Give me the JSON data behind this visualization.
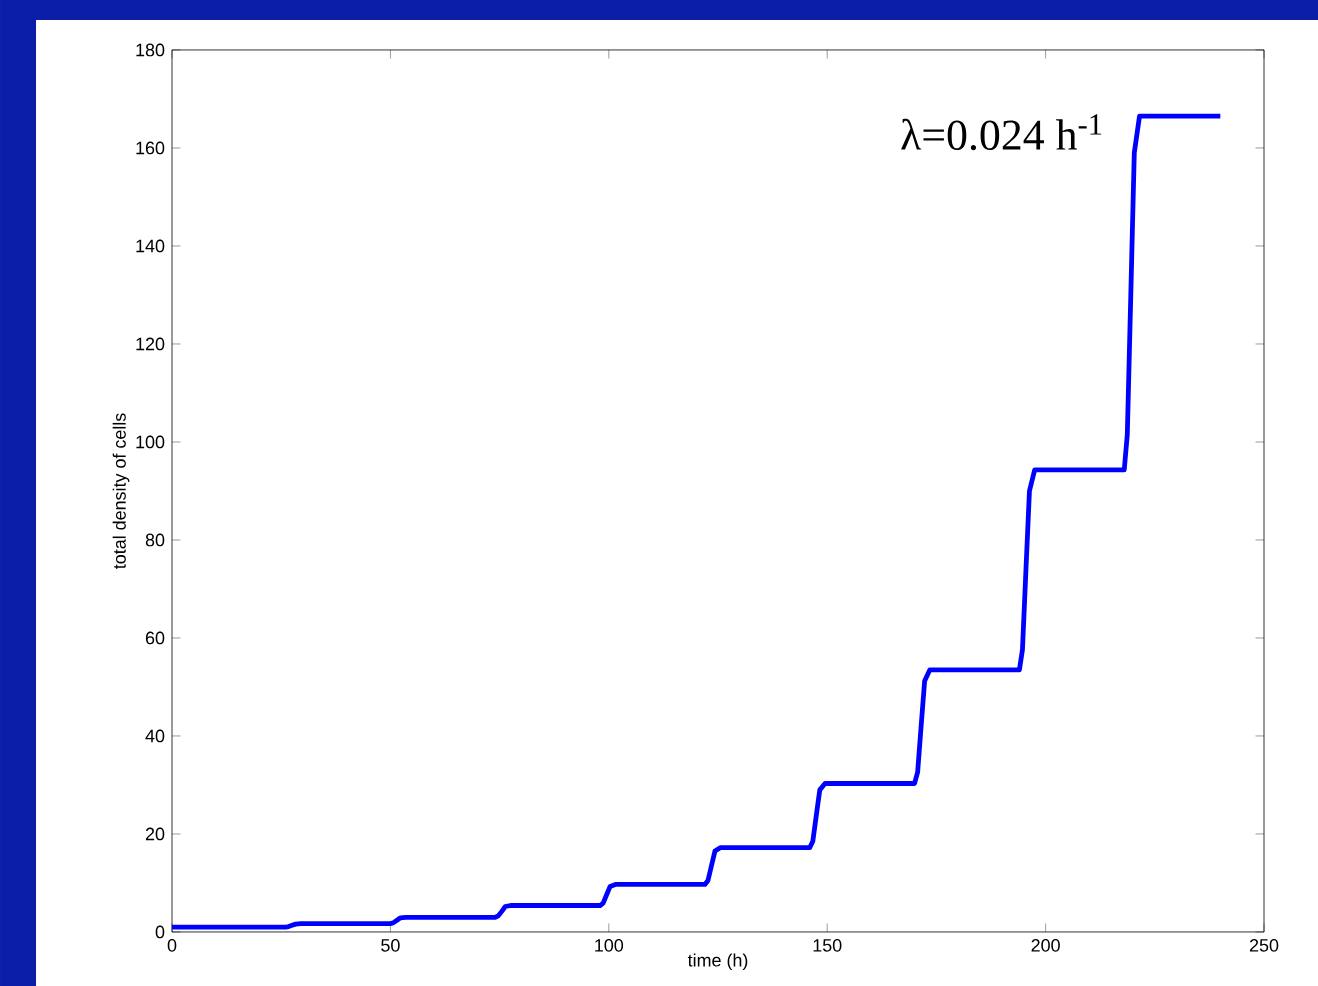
{
  "chart_data": {
    "type": "line",
    "xlabel": "time (h)",
    "ylabel": "total density of cells",
    "annotations": [
      "λ=0.024 h$^{-1}$"
    ],
    "xlim": [
      0,
      250
    ],
    "ylim": [
      0,
      180
    ],
    "xticks": [
      0,
      50,
      100,
      150,
      200,
      250
    ],
    "yticks": [
      0,
      20,
      40,
      60,
      80,
      100,
      120,
      140,
      160,
      180
    ],
    "grid": false,
    "series": [
      {
        "color": "#0000ff",
        "x": [
          0,
          26,
          26.7,
          27.5,
          28.3,
          29.5,
          50,
          50.7,
          51.5,
          52.3,
          53.5,
          74,
          74.7,
          75.5,
          76.3,
          77.5,
          98,
          98.7,
          99.5,
          100.3,
          101.5,
          122,
          122.7,
          123.5,
          124.3,
          125.5,
          146,
          146.7,
          147.5,
          148.3,
          149.5,
          170,
          170.7,
          171.5,
          172.3,
          173.5,
          194,
          194.7,
          195.5,
          196.3,
          197.5,
          218,
          218.7,
          219.5,
          220.3,
          221.5,
          240
        ],
        "values": [
          1,
          1,
          1.1,
          1.35,
          1.6,
          1.7,
          1.7,
          1.9,
          2.4,
          2.9,
          3,
          3,
          3.3,
          4.2,
          5.2,
          5.4,
          5.4,
          5.9,
          7.6,
          9.3,
          9.7,
          9.7,
          10.5,
          13.5,
          16.5,
          17.2,
          17.2,
          18.5,
          23.8,
          29,
          30.3,
          30.3,
          32.6,
          42,
          51.2,
          53.5,
          53.5,
          57.6,
          74,
          90,
          94.3,
          94.3,
          101.5,
          130,
          159,
          166.5,
          166.5
        ]
      }
    ]
  }
}
